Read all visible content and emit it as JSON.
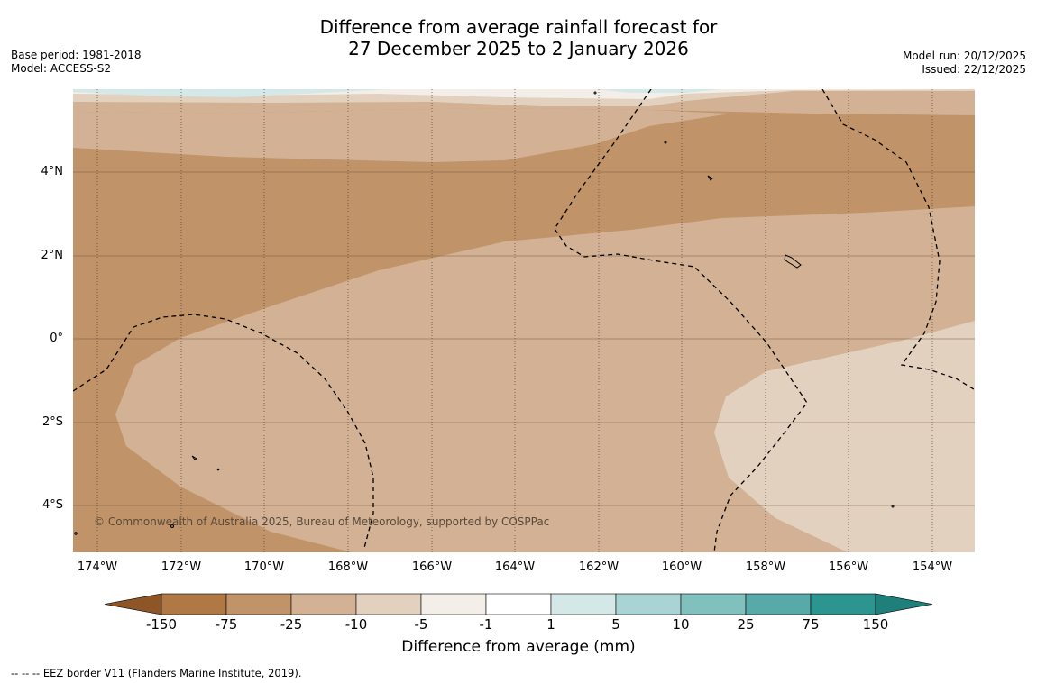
{
  "title": {
    "line1": "Difference from average rainfall forecast for",
    "line2": "27 December 2025 to 2 January 2026"
  },
  "meta_left": {
    "base_period": "Base period: 1981-2018",
    "model": "Model: ACCESS-S2"
  },
  "meta_right": {
    "model_run": "Model run: 20/12/2025",
    "issued": "Issued: 22/12/2025"
  },
  "map": {
    "copyright": "© Commonwealth of Australia 2025, Bureau of Meteorology, supported by COSPPac",
    "lat_ticks": [
      "4°N",
      "2°N",
      "0°",
      "2°S",
      "4°S"
    ],
    "lon_ticks": [
      "174°W",
      "172°W",
      "170°W",
      "168°W",
      "166°W",
      "164°W",
      "162°W",
      "160°W",
      "158°W",
      "156°W",
      "154°W"
    ],
    "colors": {
      "band_-25_-10": "#d2b194",
      "band_-75_-25": "#c09369",
      "band_-10_-5": "#e3d1c0",
      "band_-5_-1": "#f3eee7",
      "band_1_5": "#d3e8e7",
      "eez_line": "#000000"
    }
  },
  "colorbar": {
    "title": "Difference from average (mm)",
    "tick_labels": [
      "-150",
      "-75",
      "-25",
      "-10",
      "-5",
      "-1",
      "1",
      "5",
      "10",
      "25",
      "75",
      "150"
    ],
    "segment_colors": [
      "#a76b37",
      "#b07844",
      "#c09369",
      "#d2b194",
      "#e3d1c0",
      "#f3eee7",
      "#ffffff",
      "#d3e8e7",
      "#a9d4d3",
      "#80c0bd",
      "#57aaa7",
      "#2d9590",
      "#1f7f7a"
    ]
  },
  "footnote": "--  --  -- EEZ border V11 (Flanders Marine Institute, 2019)."
}
